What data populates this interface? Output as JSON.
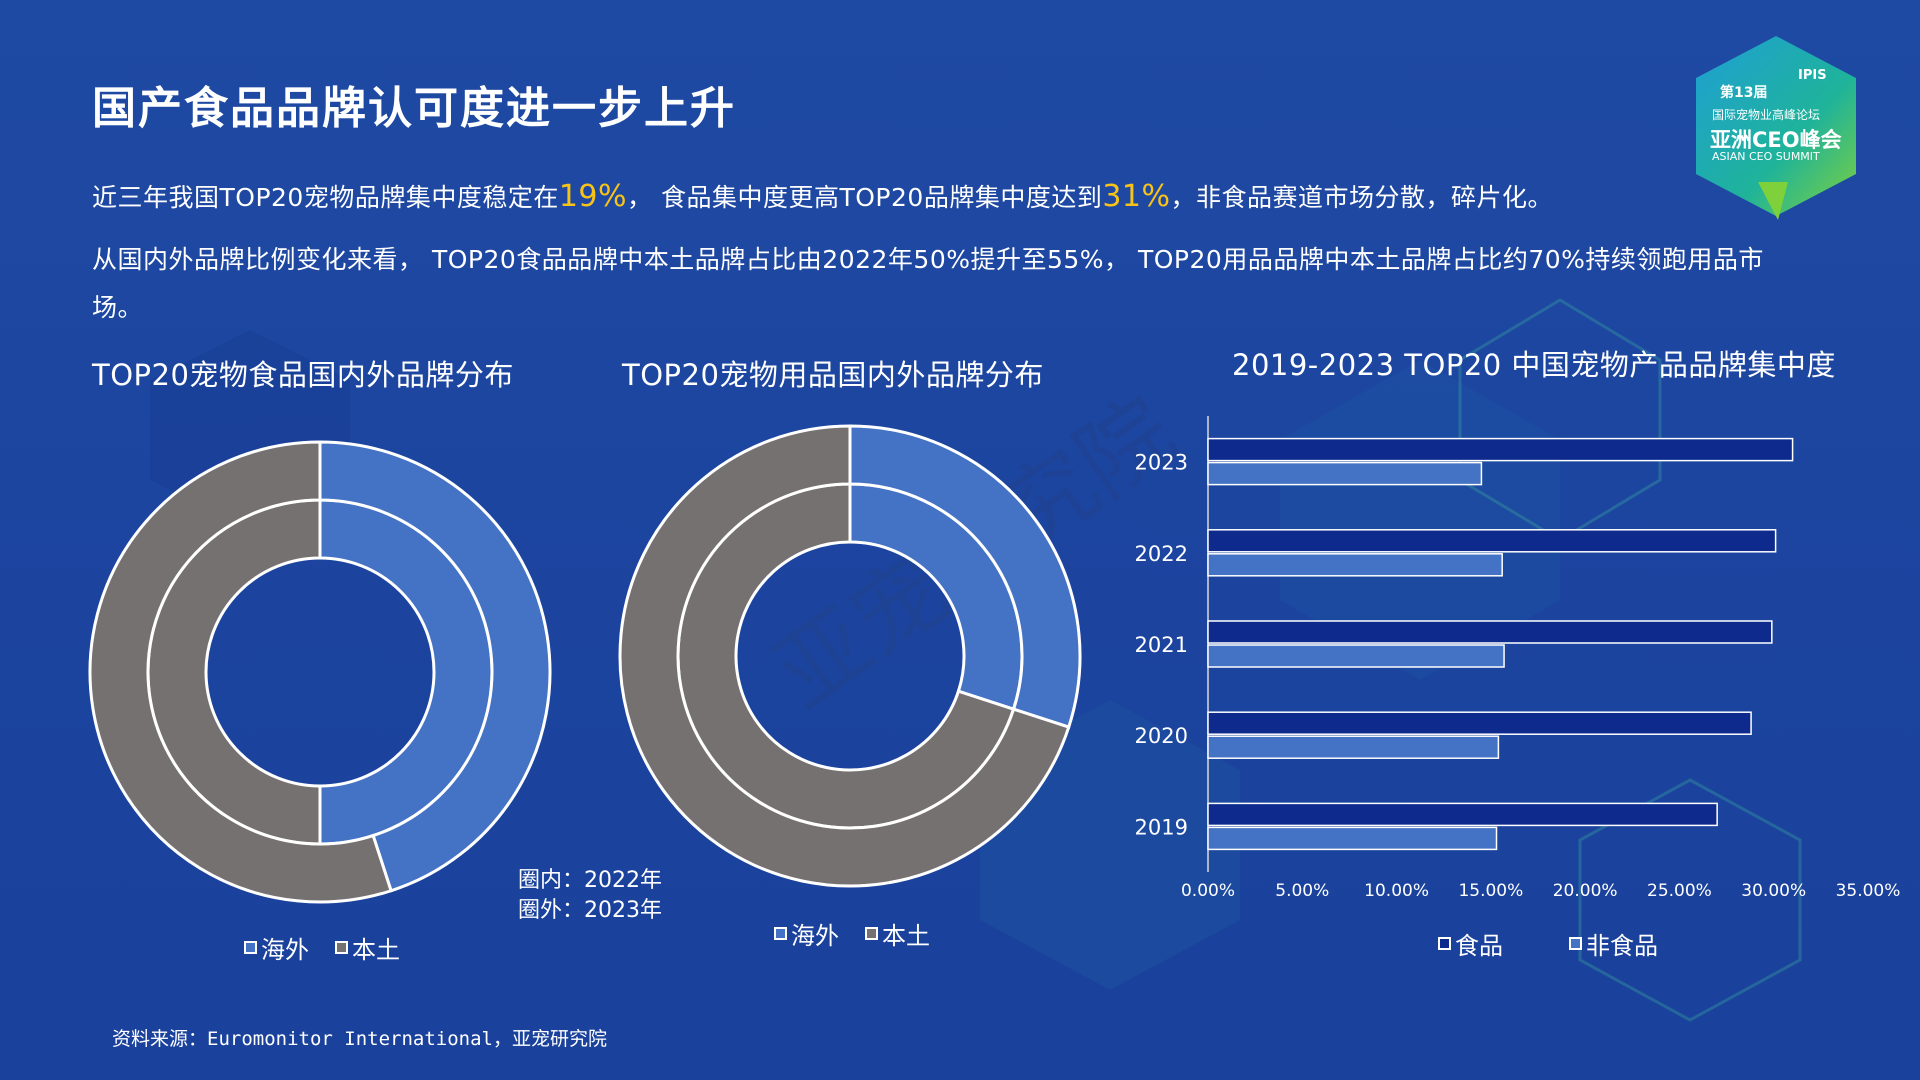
{
  "title": "国产食品品牌认可度进一步上升",
  "para1": {
    "a": "近三年我国TOP20宠物品牌集中度稳定在",
    "h1": "19%",
    "b": "，  食品集中度更高TOP20品牌集中度达到",
    "h2": "31%",
    "c": "，非食品赛道市场分散，碎片化。"
  },
  "para2": "从国内外品牌比例变化来看， TOP20食品品牌中本土品牌占比由2022年50%提升至55%， TOP20用品品牌中本土品牌占比约70%持续领跑用品市",
  "para3": "场。",
  "chart_notes": {
    "inner": "圈内：2022年",
    "outer": "圈外：2023年"
  },
  "source": "资料来源：Euromonitor International，亚宠研究院",
  "watermark": "亚宠研究院",
  "logo": {
    "edition": "第13届",
    "brand": "IPIS",
    "line1": "国际宠物业高峰论坛",
    "line2": "亚洲CEO峰会",
    "line3": "ASIAN CEO SUMMIT"
  },
  "colors": {
    "overseas": "#4472c4",
    "domestic": "#767171",
    "food": "#0d2a8c",
    "nonfood": "#4472c4",
    "highlight": "#f7c318"
  },
  "chart_data": [
    {
      "type": "pie",
      "subtype": "double-donut",
      "title": "TOP20宠物食品国内外品牌分布",
      "legend": [
        "海外",
        "本土"
      ],
      "rings": [
        {
          "name": "2022年",
          "values": {
            "海外": 50,
            "本土": 50
          }
        },
        {
          "name": "2023年",
          "values": {
            "海外": 45,
            "本土": 55
          }
        }
      ]
    },
    {
      "type": "pie",
      "subtype": "double-donut",
      "title": "TOP20宠物用品国内外品牌分布",
      "legend": [
        "海外",
        "本土"
      ],
      "rings": [
        {
          "name": "2022年",
          "values": {
            "海外": 30,
            "本土": 70
          }
        },
        {
          "name": "2023年",
          "values": {
            "海外": 30,
            "本土": 70
          }
        }
      ]
    },
    {
      "type": "bar",
      "orientation": "horizontal",
      "title": "2019-2023 TOP20 中国宠物产品品牌集中度",
      "categories": [
        "2023",
        "2022",
        "2021",
        "2020",
        "2019"
      ],
      "series": [
        {
          "name": "食品",
          "values": [
            31.0,
            30.1,
            29.9,
            28.8,
            27.0
          ]
        },
        {
          "name": "非食品",
          "values": [
            14.5,
            15.6,
            15.7,
            15.4,
            15.3
          ]
        }
      ],
      "xlim": [
        0,
        35
      ],
      "xticks": [
        "0.00%",
        "5.00%",
        "10.00%",
        "15.00%",
        "20.00%",
        "25.00%",
        "30.00%",
        "35.00%"
      ],
      "legend_position": "bottom"
    }
  ]
}
